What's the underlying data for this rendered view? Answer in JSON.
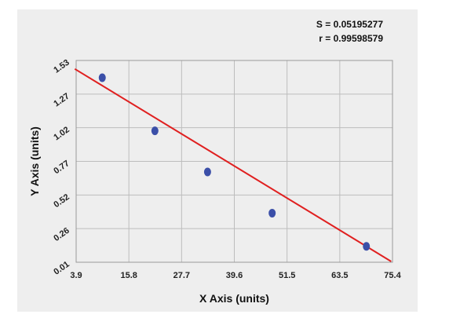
{
  "stats": {
    "s": "S = 0.05195277",
    "r": "r = 0.99598579"
  },
  "chart_data": {
    "type": "scatter",
    "xlabel": "X Axis (units)",
    "ylabel": "Y Axis (units)",
    "x_ticks": [
      "3.9",
      "15.8",
      "27.7",
      "39.6",
      "51.5",
      "63.5",
      "75.4"
    ],
    "y_ticks": [
      "0.01",
      "0.26",
      "0.52",
      "0.77",
      "1.02",
      "1.27",
      "1.53"
    ],
    "xlim": [
      3.9,
      75.4
    ],
    "ylim": [
      0.01,
      1.53
    ],
    "grid": true,
    "points": [
      {
        "x": 9.8,
        "y": 1.4
      },
      {
        "x": 21.7,
        "y": 1.0
      },
      {
        "x": 33.6,
        "y": 0.69
      },
      {
        "x": 48.2,
        "y": 0.38
      },
      {
        "x": 69.5,
        "y": 0.13
      }
    ],
    "fit_line": {
      "x": [
        3.9,
        75.4
      ],
      "y": [
        1.46,
        0.01
      ]
    },
    "colors": {
      "points": "#3b4fa8",
      "fit": "#e02020",
      "grid": "#bdbdbd",
      "background": "#eeeeee"
    }
  }
}
